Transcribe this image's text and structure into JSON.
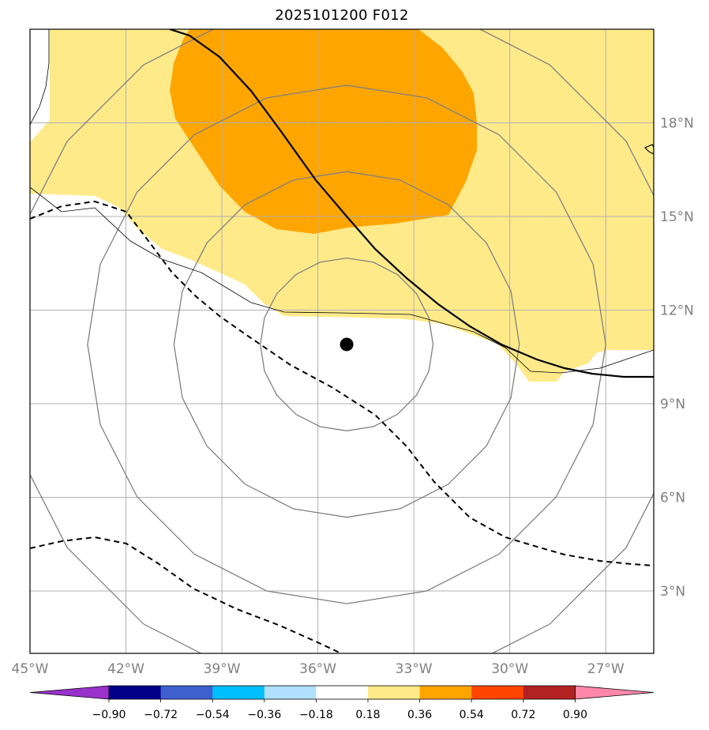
{
  "title": "2025101200 F012",
  "map": {
    "lon_range": [
      -45,
      -25.5
    ],
    "lat_range": [
      1,
      21
    ],
    "lon_ticks": [
      {
        "value": -45,
        "label": "45°W"
      },
      {
        "value": -42,
        "label": "42°W"
      },
      {
        "value": -39,
        "label": "39°W"
      },
      {
        "value": -36,
        "label": "36°W"
      },
      {
        "value": -33,
        "label": "33°W"
      },
      {
        "value": -30,
        "label": "30°W"
      },
      {
        "value": -27,
        "label": "27°W"
      }
    ],
    "lat_ticks": [
      {
        "value": 3,
        "label": "3°N"
      },
      {
        "value": 6,
        "label": "6°N"
      },
      {
        "value": 9,
        "label": "9°N"
      },
      {
        "value": 12,
        "label": "12°N"
      },
      {
        "value": 15,
        "label": "15°N"
      },
      {
        "value": 18,
        "label": "18°N"
      }
    ],
    "storm_center": {
      "lon": -35.1,
      "lat": 10.9
    },
    "range_ring_radii_deg": [
      2.7,
      5.4,
      8.1,
      10.8
    ],
    "colors": {
      "grid": "#b0b0b0",
      "rings": "#808080",
      "fill_018_036": "#ffea8a",
      "fill_036_054": "#ffa500",
      "contour": "#000000"
    }
  },
  "colorbar": {
    "boundaries": [
      "−0.90",
      "−0.72",
      "−0.54",
      "−0.36",
      "−0.18",
      "0.18",
      "0.36",
      "0.54",
      "0.72",
      "0.90"
    ],
    "colors": [
      "#9932cc",
      "#00008b",
      "#3e5fcf",
      "#00bfff",
      "#b0e0ff",
      "#ffffff",
      "#ffea8a",
      "#ffa500",
      "#ff4500",
      "#b22222",
      "#ff88aa"
    ]
  }
}
